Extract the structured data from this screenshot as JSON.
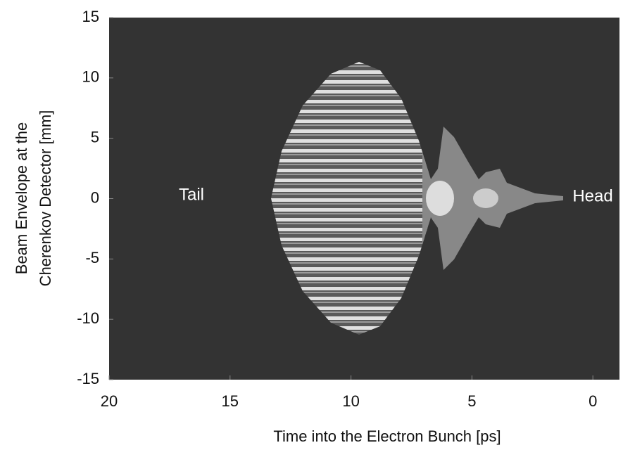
{
  "chart_data": {
    "type": "contour",
    "xlabel": "Time into the Electron Bunch [ps]",
    "ylabel": [
      "Beam Envelope at the",
      "Cherenkov Detector [mm]"
    ],
    "annotations": [
      "Tail",
      "Head"
    ],
    "xlim": [
      20,
      -1.1
    ],
    "xticks": [
      20,
      15,
      10,
      5,
      0
    ],
    "ylim": [
      -15,
      15
    ],
    "yticks": [
      -15,
      -10,
      -5,
      0,
      5,
      10,
      15
    ]
  }
}
